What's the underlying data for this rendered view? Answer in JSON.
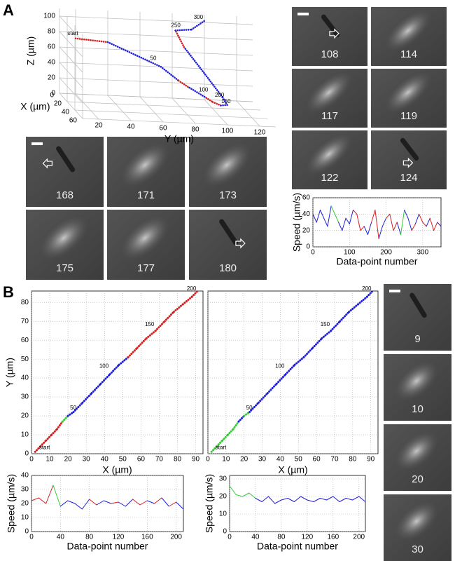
{
  "panel_labels": [
    "A",
    "B"
  ],
  "palette": {
    "b": "#1f1fd8",
    "r": "#d62020",
    "g": "#33cc33"
  },
  "frames": {
    "A_right": [
      "108",
      "114",
      "117",
      "119",
      "122",
      "124"
    ],
    "A_left": [
      "168",
      "171",
      "173",
      "175",
      "177",
      "180"
    ],
    "B_right": [
      "9",
      "10",
      "20",
      "30"
    ]
  },
  "chart_data": [
    {
      "type": "trajectory3d",
      "x_label": "X (µm)",
      "y_label": "Y (µm)",
      "z_label": "Z (µm)",
      "xlim": [
        0,
        60
      ],
      "xticks": [
        0,
        20,
        40,
        60
      ],
      "ylim": [
        10,
        130
      ],
      "yticks": [
        20,
        40,
        60,
        80,
        100,
        120
      ],
      "zlim": [
        0,
        110
      ],
      "zticks": [
        0,
        20,
        40,
        60,
        80,
        100
      ],
      "x": [
        0,
        0,
        0,
        0,
        10,
        20,
        30,
        30,
        30,
        30,
        30,
        20,
        10,
        0,
        0,
        0
      ],
      "y": [
        20,
        40,
        73,
        84,
        88,
        86,
        94,
        98,
        103,
        107,
        104,
        95,
        85,
        82,
        92,
        100
      ],
      "z": [
        72,
        69,
        40,
        23,
        20,
        25,
        18,
        13,
        9,
        10,
        20,
        45,
        72,
        88,
        90,
        102
      ],
      "point_colors": [
        "b",
        "r",
        "b",
        "b",
        "r",
        "g",
        "b",
        "r",
        "r",
        "b",
        "b",
        "b",
        "b",
        "r",
        "b",
        "b"
      ],
      "annotations": [
        {
          "text": "start",
          "x": 0,
          "y": 20,
          "z": 72
        },
        {
          "text": "50",
          "x": 0,
          "y": 70,
          "z": 44
        },
        {
          "text": "100",
          "x": 30,
          "y": 94,
          "z": 22
        },
        {
          "text": "150",
          "x": 30,
          "y": 108,
          "z": 8
        },
        {
          "text": "200",
          "x": 30,
          "y": 104,
          "z": 16
        },
        {
          "text": "250",
          "x": 0,
          "y": 84,
          "z": 88
        },
        {
          "text": "300",
          "x": 0,
          "y": 98,
          "z": 100
        }
      ]
    },
    {
      "type": "line",
      "xlabel": "Data-point number",
      "ylabel": "Speed (µm/s)",
      "xlim": [
        0,
        350
      ],
      "xticks": [
        0,
        100,
        200,
        300
      ],
      "ylim": [
        0,
        60
      ],
      "yticks": [
        0,
        20,
        40,
        60
      ],
      "grid": true,
      "x": [
        0,
        10,
        20,
        30,
        40,
        50,
        60,
        70,
        80,
        90,
        100,
        110,
        120,
        130,
        140,
        150,
        160,
        170,
        180,
        190,
        200,
        210,
        220,
        230,
        240,
        250,
        260,
        270,
        280,
        290,
        300,
        310,
        320,
        330,
        340,
        350
      ],
      "values": [
        40,
        30,
        45,
        35,
        25,
        50,
        40,
        30,
        20,
        35,
        28,
        45,
        40,
        20,
        25,
        15,
        30,
        45,
        10,
        25,
        35,
        40,
        20,
        30,
        15,
        45,
        35,
        20,
        28,
        40,
        30,
        25,
        35,
        20,
        30,
        25
      ],
      "point_colors": [
        "b",
        "b",
        "b",
        "b",
        "b",
        "b",
        "g",
        "g",
        "b",
        "b",
        "b",
        "b",
        "r",
        "r",
        "r",
        "b",
        "b",
        "r",
        "r",
        "b",
        "b",
        "r",
        "r",
        "r",
        "b",
        "g",
        "b",
        "b",
        "r",
        "b",
        "r",
        "r",
        "b",
        "r",
        "r",
        "b"
      ]
    },
    {
      "type": "line",
      "xlabel": "X (µm)",
      "ylabel": "Y (µm)",
      "xlim": [
        0,
        94
      ],
      "xticks": [
        0,
        10,
        20,
        30,
        40,
        50,
        60,
        70,
        80,
        90
      ],
      "ylim": [
        0,
        86
      ],
      "yticks": [
        0,
        10,
        20,
        30,
        40,
        50,
        60,
        70,
        80
      ],
      "grid": true,
      "thick": true,
      "x": [
        2,
        5,
        8,
        11,
        14,
        17,
        20,
        23,
        28,
        33,
        38,
        43,
        48,
        53,
        58,
        63,
        68,
        73,
        78,
        83,
        88,
        91
      ],
      "values": [
        1,
        4,
        7,
        10,
        13,
        17,
        20,
        22,
        27,
        32,
        37,
        42,
        47,
        51,
        56,
        61,
        65,
        70,
        75,
        79,
        83,
        86
      ],
      "point_colors": [
        "r",
        "r",
        "r",
        "r",
        "r",
        "r",
        "g",
        "b",
        "b",
        "b",
        "b",
        "b",
        "b",
        "b",
        "r",
        "r",
        "r",
        "r",
        "r",
        "r",
        "r",
        "r"
      ],
      "annotations": [
        {
          "text": "start",
          "x": 3,
          "y": 1
        },
        {
          "text": "50",
          "x": 20,
          "y": 22
        },
        {
          "text": "100",
          "x": 36,
          "y": 44
        },
        {
          "text": "150",
          "x": 61,
          "y": 66
        },
        {
          "text": "200",
          "x": 84,
          "y": 85
        }
      ]
    },
    {
      "type": "line",
      "xlabel": "X (µm)",
      "ytick_labels": false,
      "xlim": [
        0,
        94
      ],
      "xticks": [
        0,
        10,
        20,
        30,
        40,
        50,
        60,
        70,
        80,
        90
      ],
      "ylim": [
        0,
        86
      ],
      "yticks": [
        0,
        10,
        20,
        30,
        40,
        50,
        60,
        70,
        80
      ],
      "grid": true,
      "thick": true,
      "x": [
        2,
        5,
        8,
        11,
        14,
        17,
        20,
        23,
        28,
        33,
        38,
        43,
        48,
        53,
        58,
        63,
        68,
        73,
        78,
        83,
        88,
        91
      ],
      "values": [
        1,
        4,
        7,
        10,
        13,
        17,
        20,
        22,
        27,
        32,
        37,
        42,
        47,
        51,
        56,
        61,
        65,
        70,
        75,
        79,
        83,
        86
      ],
      "point_colors": [
        "b",
        "g",
        "g",
        "g",
        "g",
        "g",
        "b",
        "g",
        "b",
        "b",
        "b",
        "b",
        "b",
        "b",
        "b",
        "b",
        "b",
        "b",
        "b",
        "b",
        "b",
        "b"
      ],
      "annotations": [
        {
          "text": "start",
          "x": 3,
          "y": 1
        },
        {
          "text": "50",
          "x": 20,
          "y": 22
        },
        {
          "text": "100",
          "x": 36,
          "y": 44
        },
        {
          "text": "150",
          "x": 61,
          "y": 66
        },
        {
          "text": "200",
          "x": 84,
          "y": 85
        }
      ]
    },
    {
      "type": "line",
      "xlabel": "Data-point number",
      "ylabel": "Speed (µm/s)",
      "xlim": [
        0,
        210
      ],
      "xticks": [
        0,
        40,
        80,
        120,
        160,
        200
      ],
      "ylim": [
        0,
        40
      ],
      "yticks": [
        0,
        10,
        20,
        30,
        40
      ],
      "grid": true,
      "x": [
        0,
        10,
        20,
        30,
        40,
        50,
        60,
        70,
        80,
        90,
        100,
        110,
        120,
        130,
        140,
        150,
        160,
        170,
        180,
        190,
        200,
        210
      ],
      "values": [
        22,
        24,
        20,
        33,
        18,
        22,
        20,
        16,
        23,
        19,
        22,
        20,
        21,
        18,
        23,
        19,
        22,
        20,
        24,
        18,
        21,
        16
      ],
      "point_colors": [
        "r",
        "r",
        "r",
        "r",
        "g",
        "b",
        "b",
        "b",
        "b",
        "r",
        "b",
        "b",
        "r",
        "b",
        "b",
        "r",
        "r",
        "b",
        "r",
        "b",
        "r",
        "b"
      ]
    },
    {
      "type": "line",
      "xlabel": "Data-point number",
      "ylabel": "Speed (µm/s)",
      "xlim": [
        0,
        210
      ],
      "xticks": [
        0,
        40,
        80,
        120,
        160,
        200
      ],
      "ylim": [
        0,
        32
      ],
      "yticks": [
        0,
        10,
        20,
        30
      ],
      "grid": true,
      "x": [
        0,
        10,
        20,
        30,
        40,
        50,
        60,
        70,
        80,
        90,
        100,
        110,
        120,
        130,
        140,
        150,
        160,
        170,
        180,
        190,
        200,
        210
      ],
      "values": [
        26,
        21,
        20,
        22,
        19,
        17,
        20,
        16,
        18,
        19,
        17,
        20,
        18,
        17,
        19,
        18,
        20,
        17,
        19,
        18,
        20,
        17
      ],
      "point_colors": [
        "b",
        "g",
        "g",
        "g",
        "g",
        "b",
        "b",
        "b",
        "b",
        "b",
        "b",
        "b",
        "b",
        "b",
        "b",
        "b",
        "b",
        "b",
        "b",
        "b",
        "b",
        "b"
      ]
    }
  ]
}
